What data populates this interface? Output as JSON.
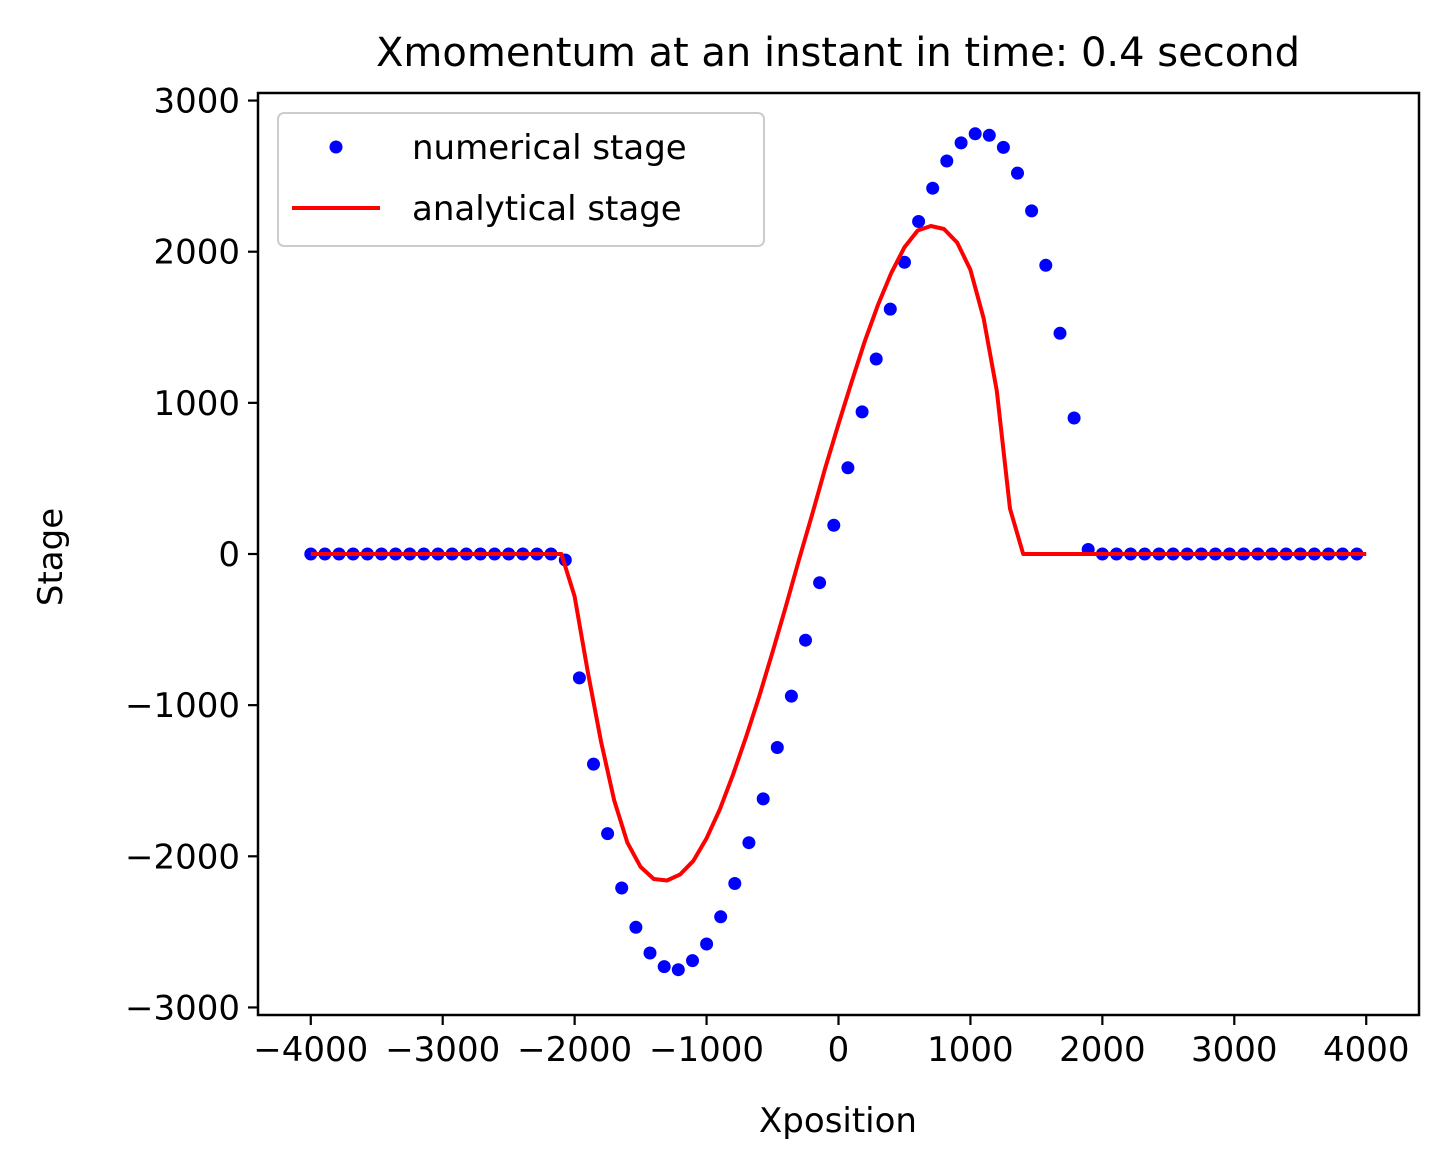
{
  "chart_data": {
    "type": "line",
    "title": "Xmomentum at an instant in time: 0.4 second",
    "xlabel": "Xposition",
    "ylabel": "Stage",
    "xlim": [
      -4400,
      4400
    ],
    "ylim": [
      -3050,
      3050
    ],
    "xticks": [
      -4000,
      -3000,
      -2000,
      -1000,
      0,
      1000,
      2000,
      3000,
      4000
    ],
    "xtick_labels": [
      "−4000",
      "−3000",
      "−2000",
      "−1000",
      "0",
      "1000",
      "2000",
      "3000",
      "4000"
    ],
    "yticks": [
      -3000,
      -2000,
      -1000,
      0,
      1000,
      2000,
      3000
    ],
    "ytick_labels": [
      "−3000",
      "−2000",
      "−1000",
      "0",
      "1000",
      "2000",
      "3000"
    ],
    "grid": false,
    "legend_position": "top-left",
    "series": [
      {
        "name": "numerical stage",
        "style": "markers",
        "color": "#0000ff",
        "x": [
          -4000,
          -3893,
          -3786,
          -3679,
          -3571,
          -3464,
          -3357,
          -3250,
          -3143,
          -3036,
          -2929,
          -2821,
          -2714,
          -2607,
          -2500,
          -2393,
          -2286,
          -2179,
          -2071,
          -1964,
          -1857,
          -1750,
          -1643,
          -1536,
          -1429,
          -1321,
          -1214,
          -1107,
          -1000,
          -893,
          -786,
          -679,
          -571,
          -464,
          -357,
          -250,
          -143,
          -36,
          71,
          179,
          286,
          393,
          500,
          607,
          714,
          821,
          929,
          1036,
          1143,
          1250,
          1357,
          1464,
          1571,
          1679,
          1786,
          1893,
          2000,
          2107,
          2214,
          2321,
          2429,
          2536,
          2643,
          2750,
          2857,
          2964,
          3071,
          3179,
          3286,
          3393,
          3500,
          3607,
          3714,
          3821,
          3929
        ],
        "y": [
          0,
          0,
          0,
          0,
          0,
          0,
          0,
          0,
          0,
          0,
          0,
          0,
          0,
          0,
          0,
          0,
          0,
          0,
          -40,
          -820,
          -1390,
          -1850,
          -2210,
          -2470,
          -2640,
          -2730,
          -2750,
          -2690,
          -2580,
          -2400,
          -2180,
          -1910,
          -1620,
          -1280,
          -940,
          -570,
          -190,
          190,
          570,
          940,
          1290,
          1620,
          1930,
          2200,
          2420,
          2600,
          2720,
          2780,
          2770,
          2690,
          2520,
          2270,
          1910,
          1460,
          900,
          30,
          0,
          0,
          0,
          0,
          0,
          0,
          0,
          0,
          0,
          0,
          0,
          0,
          0,
          0,
          0,
          0,
          0,
          0,
          0
        ]
      },
      {
        "name": "analytical stage",
        "style": "line",
        "color": "#ff0000",
        "x": [
          -4000,
          -3900,
          -3800,
          -3700,
          -3600,
          -3500,
          -3400,
          -3300,
          -3200,
          -3100,
          -3000,
          -2900,
          -2800,
          -2700,
          -2600,
          -2500,
          -2400,
          -2300,
          -2200,
          -2100,
          -2000,
          -1900,
          -1800,
          -1700,
          -1600,
          -1500,
          -1400,
          -1300,
          -1200,
          -1100,
          -1000,
          -900,
          -800,
          -700,
          -600,
          -500,
          -400,
          -300,
          -200,
          -100,
          0,
          100,
          200,
          300,
          400,
          500,
          600,
          700,
          800,
          900,
          1000,
          1100,
          1200,
          1300,
          1400,
          1500,
          1600,
          1700,
          1800,
          1900,
          2000,
          2100,
          2200,
          2300,
          2400,
          2500,
          2600,
          2700,
          2800,
          2900,
          3000,
          3100,
          3200,
          3300,
          3400,
          3500,
          3600,
          3700,
          3800,
          3900,
          4000
        ],
        "y": [
          0,
          0,
          0,
          0,
          0,
          0,
          0,
          0,
          0,
          0,
          0,
          0,
          0,
          0,
          0,
          0,
          0,
          0,
          0,
          0,
          -280,
          -780,
          -1240,
          -1630,
          -1910,
          -2070,
          -2150,
          -2160,
          -2120,
          -2030,
          -1880,
          -1690,
          -1460,
          -1210,
          -940,
          -650,
          -350,
          -40,
          260,
          570,
          860,
          1140,
          1410,
          1650,
          1860,
          2030,
          2140,
          2170,
          2150,
          2060,
          1880,
          1560,
          1080,
          300,
          0,
          0,
          0,
          0,
          0,
          0,
          0,
          0,
          0,
          0,
          0,
          0,
          0,
          0,
          0,
          0,
          0,
          0,
          0,
          0,
          0,
          0,
          0,
          0,
          0,
          0,
          0
        ]
      }
    ]
  }
}
